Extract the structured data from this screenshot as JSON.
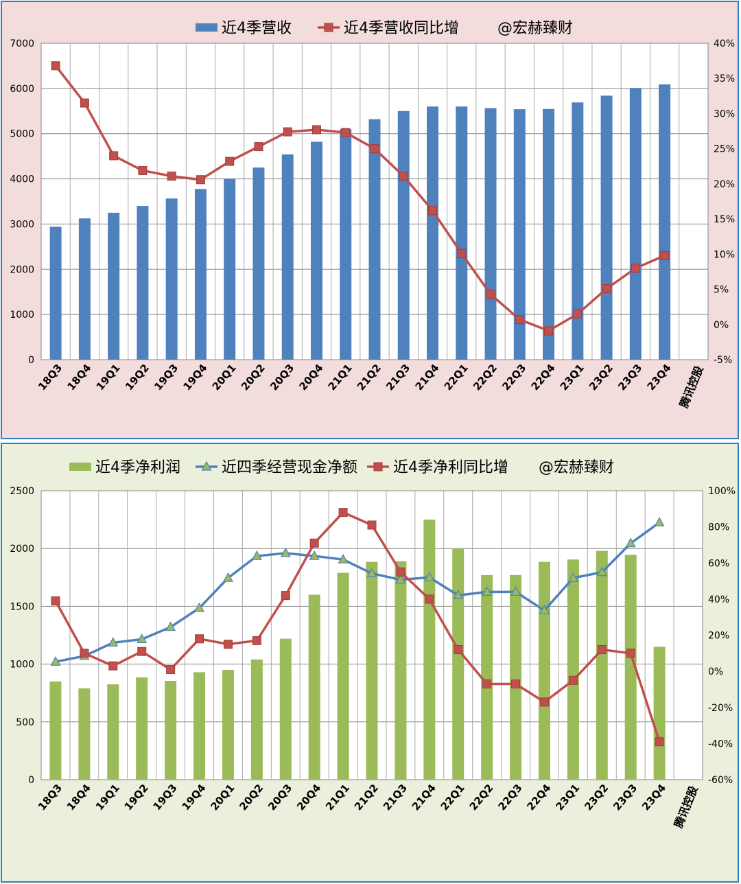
{
  "chart_data": [
    {
      "type": "bar",
      "categories": [
        "18Q3",
        "18Q4",
        "19Q1",
        "19Q2",
        "19Q3",
        "19Q4",
        "20Q1",
        "20Q2",
        "20Q3",
        "20Q4",
        "21Q1",
        "21Q2",
        "21Q3",
        "21Q4",
        "22Q1",
        "22Q2",
        "22Q3",
        "22Q4",
        "23Q1",
        "23Q2",
        "23Q3",
        "23Q4"
      ],
      "series": [
        {
          "name": "近4季营收",
          "kind": "bar",
          "axis": "left",
          "color": "#4f81bd",
          "values": [
            2940,
            3125,
            3250,
            3400,
            3565,
            3775,
            4000,
            4250,
            4540,
            4820,
            5100,
            5320,
            5500,
            5600,
            5600,
            5565,
            5540,
            5545,
            5690,
            5840,
            6010,
            6090
          ]
        },
        {
          "name": "近4季营收同比增",
          "kind": "line",
          "axis": "right",
          "color": "#c0504d",
          "marker": "square",
          "values": [
            36.8,
            31.5,
            24.0,
            21.9,
            21.1,
            20.6,
            23.2,
            25.3,
            27.4,
            27.7,
            27.3,
            25.0,
            21.1,
            16.2,
            10.1,
            4.3,
            0.7,
            -0.9,
            1.5,
            5.1,
            8.0,
            9.8
          ]
        }
      ],
      "ylim_left": [
        0,
        7000
      ],
      "ylim_right": [
        -5,
        40
      ],
      "yticks_left": [
        "0",
        "1000",
        "2000",
        "3000",
        "4000",
        "5000",
        "6000",
        "7000"
      ],
      "yticks_right": [
        "-5%",
        "0%",
        "5%",
        "10%",
        "15%",
        "20%",
        "25%",
        "30%",
        "35%",
        "40%"
      ],
      "watermark": "@宏赫臻财",
      "company_label": "腾讯控股",
      "grid": true,
      "legend_position": "top"
    },
    {
      "type": "bar",
      "categories": [
        "18Q3",
        "18Q4",
        "19Q1",
        "19Q2",
        "19Q3",
        "19Q4",
        "20Q1",
        "20Q2",
        "20Q3",
        "20Q4",
        "21Q1",
        "21Q2",
        "21Q3",
        "21Q4",
        "22Q1",
        "22Q2",
        "22Q3",
        "22Q4",
        "23Q1",
        "23Q2",
        "23Q3",
        "23Q4"
      ],
      "series": [
        {
          "name": "近4季净利润",
          "kind": "bar",
          "axis": "left",
          "color": "#9bbb59",
          "values": [
            850,
            790,
            825,
            885,
            855,
            930,
            950,
            1040,
            1220,
            1600,
            1790,
            1885,
            1890,
            2250,
            2000,
            1770,
            1770,
            1885,
            1905,
            1980,
            1945,
            1150
          ]
        },
        {
          "name": "近四季经营现金净额",
          "kind": "line",
          "axis": "left",
          "color": "#4f81bd",
          "marker": "triangle",
          "values": [
            1020,
            1070,
            1185,
            1215,
            1320,
            1485,
            1745,
            1935,
            1960,
            1935,
            1905,
            1785,
            1730,
            1750,
            1595,
            1625,
            1625,
            1465,
            1745,
            1795,
            2045,
            2225
          ]
        },
        {
          "name": "近4季净利同比增",
          "kind": "line",
          "axis": "right",
          "color": "#c0504d",
          "marker": "square",
          "values": [
            39,
            10,
            3,
            11,
            1,
            18,
            15,
            17,
            42,
            71,
            88,
            81,
            55,
            40,
            12,
            -7,
            -7,
            -17,
            -5,
            12,
            10,
            -39
          ]
        }
      ],
      "ylim_left": [
        0,
        2500
      ],
      "ylim_right": [
        -60,
        100
      ],
      "yticks_left": [
        "0",
        "500",
        "1000",
        "1500",
        "2000",
        "2500"
      ],
      "yticks_right": [
        "-60%",
        "-40%",
        "-20%",
        "0%",
        "20%",
        "40%",
        "60%",
        "80%",
        "100%"
      ],
      "watermark": "@宏赫臻财",
      "company_label": "腾讯控股",
      "grid": true,
      "legend_position": "top"
    }
  ]
}
